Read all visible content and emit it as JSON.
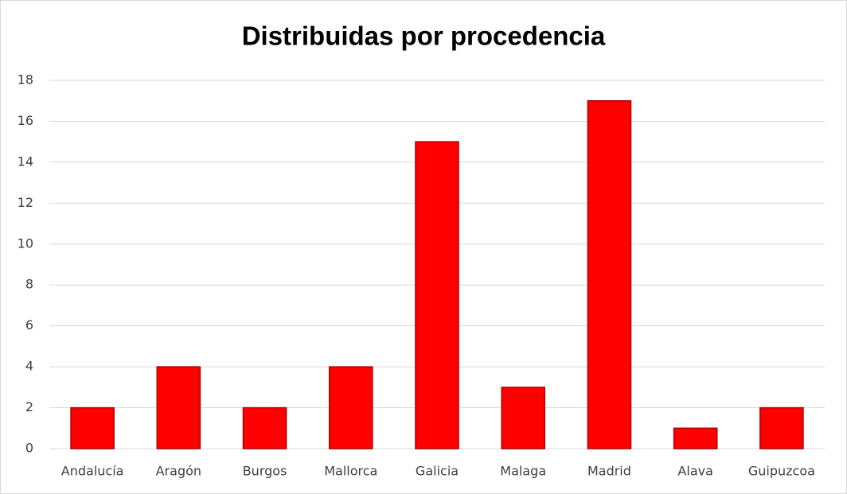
{
  "chart_data": {
    "type": "bar",
    "title": "Distribuidas por procedencia",
    "categories": [
      "Andalucía",
      "Aragón",
      "Burgos",
      "Mallorca",
      "Galicia",
      "Malaga",
      "Madrid",
      "Alava",
      "Guipuzcoa"
    ],
    "values": [
      2,
      4,
      2,
      4,
      15,
      3,
      17,
      1,
      2
    ],
    "color": "#ff0000",
    "ylim": [
      0,
      18
    ],
    "yticks": [
      0,
      2,
      4,
      6,
      8,
      10,
      12,
      14,
      16,
      18
    ],
    "grid": true
  }
}
